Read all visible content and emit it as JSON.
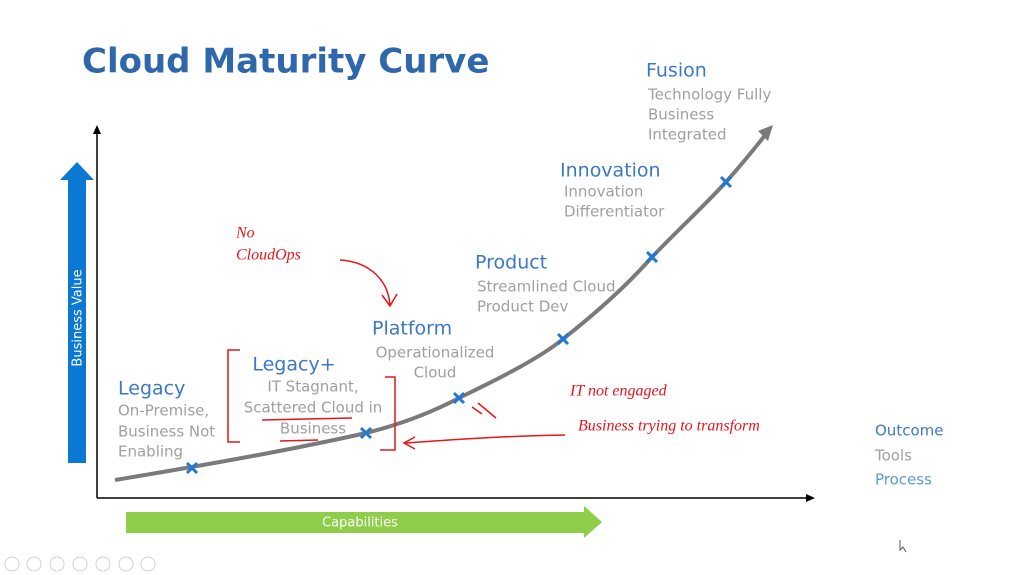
{
  "title": "Cloud Maturity Curve",
  "axes": {
    "y_label": "Business Value",
    "x_label": "Capabilities"
  },
  "stages": [
    {
      "label": "Legacy",
      "description": [
        "On-Premise,",
        "Business Not",
        "Enabling"
      ]
    },
    {
      "label": "Legacy+",
      "description": [
        "IT Stagnant,",
        "Scattered Cloud in",
        "Business"
      ]
    },
    {
      "label": "Platform",
      "description": [
        "Operationalized",
        "Cloud"
      ]
    },
    {
      "label": "Product",
      "description": [
        "Streamlined Cloud",
        "Product Dev"
      ]
    },
    {
      "label": "Innovation",
      "description": [
        "Innovation",
        "Differentiator"
      ]
    },
    {
      "label": "Fusion",
      "description": [
        "Technology Fully",
        "Business",
        "Integrated"
      ]
    }
  ],
  "legend": [
    "Outcome",
    "Tools",
    "Process"
  ],
  "annotations": {
    "no_cloudops": [
      "No",
      "CloudOps"
    ],
    "it_not_engaged": "IT not engaged",
    "business_trying": "Business trying to transform"
  }
}
